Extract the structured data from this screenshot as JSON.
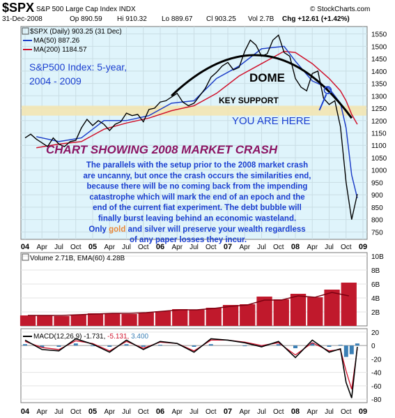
{
  "header": {
    "symbol": "$SPX",
    "name": "S&P 500 Large Cap Index INDX",
    "source": "© StockCharts.com",
    "date": "31-Dec-2008",
    "open": "Op 890.59",
    "high": "Hi 910.32",
    "low": "Lo 889.67",
    "close": "Cl 903.25",
    "volume": "Vol 2.7B",
    "change": "Chg +12.61 (+1.42%)",
    "change_arrow": "▲"
  },
  "price_panel": {
    "legend_price": "$SPX (Daily) 903.25 (31 Dec)",
    "legend_ma50": "MA(50) 887.26",
    "legend_ma200": "MA(200) 1184.57",
    "colors": {
      "price": "#000000",
      "ma50": "#1e3fc8",
      "ma200": "#d0112b",
      "background": "#dff4fb",
      "support_band": "#f3e6b3",
      "dome": "#000000"
    }
  },
  "annotations": {
    "title_line1": "S&P500 Index: 5-year,",
    "title_line2": "2004 - 2009",
    "dome": "DOME",
    "key_support": "KEY SUPPORT",
    "you_are_here": "YOU ARE HERE",
    "chart_heading": "CHART SHOWING 2008 MARKET CRASH",
    "paragraph": [
      "The parallels with the setup prior to the 2008 market crash",
      "are uncanny, but once the crash occurs the similarities end,",
      "because there will be no coming back from the impending",
      "catastrophe which will mark the end of an epoch and the",
      "end of the current fiat experiment. The debt bubble will",
      "finally burst leaving behind an economic wasteland."
    ],
    "last_line_pre": "Only ",
    "last_line_gold": "gold",
    "last_line_mid": " and silver will preserve your wealth regardless",
    "last_line_end": "of any paper losses they incur."
  },
  "volume_panel": {
    "legend": "Volume 2.71B, EMA(60) 4.28B",
    "colors": {
      "bars": "#c0192c",
      "ema": "#d0112b"
    }
  },
  "macd_panel": {
    "legend_label": "MACD(12,26,9)",
    "legend_macd": "-1.731,",
    "legend_signal": "-5.131,",
    "legend_hist": "3.400",
    "colors": {
      "macd": "#000000",
      "signal": "#d0112b",
      "hist": "#3a7fb5"
    }
  },
  "chart_data": [
    {
      "type": "line",
      "title": "$SPX (Daily) 903.25 (31 Dec)",
      "x_ticks": [
        "04",
        "Apr",
        "Jul",
        "Oct",
        "05",
        "Apr",
        "Jul",
        "Oct",
        "06",
        "Apr",
        "Jul",
        "Oct",
        "07",
        "Apr",
        "Jul",
        "Oct",
        "08",
        "Apr",
        "Jul",
        "Oct",
        "09"
      ],
      "y_ticks": [
        750,
        800,
        850,
        900,
        950,
        1000,
        1050,
        1100,
        1150,
        1200,
        1250,
        1300,
        1350,
        1400,
        1450,
        1500,
        1550
      ],
      "ylim": [
        720,
        1580
      ],
      "support_band": [
        1220,
        1260
      ],
      "series": [
        {
          "name": "$SPX",
          "x": [
            "2004-01",
            "2004-02",
            "2004-03",
            "2004-04",
            "2004-05",
            "2004-06",
            "2004-07",
            "2004-08",
            "2004-09",
            "2004-10",
            "2004-11",
            "2004-12",
            "2005-01",
            "2005-02",
            "2005-03",
            "2005-04",
            "2005-05",
            "2005-06",
            "2005-07",
            "2005-08",
            "2005-09",
            "2005-10",
            "2005-11",
            "2005-12",
            "2006-01",
            "2006-02",
            "2006-03",
            "2006-04",
            "2006-05",
            "2006-06",
            "2006-07",
            "2006-08",
            "2006-09",
            "2006-10",
            "2006-11",
            "2006-12",
            "2007-01",
            "2007-02",
            "2007-03",
            "2007-04",
            "2007-05",
            "2007-06",
            "2007-07",
            "2007-08",
            "2007-09",
            "2007-10",
            "2007-11",
            "2007-12",
            "2008-01",
            "2008-02",
            "2008-03",
            "2008-04",
            "2008-05",
            "2008-06",
            "2008-07",
            "2008-08",
            "2008-09",
            "2008-10",
            "2008-11",
            "2008-12"
          ],
          "values": [
            1130,
            1145,
            1125,
            1110,
            1095,
            1130,
            1105,
            1095,
            1115,
            1120,
            1170,
            1205,
            1180,
            1200,
            1185,
            1160,
            1185,
            1195,
            1230,
            1220,
            1225,
            1195,
            1245,
            1250,
            1275,
            1280,
            1295,
            1310,
            1275,
            1260,
            1270,
            1300,
            1330,
            1375,
            1395,
            1420,
            1435,
            1405,
            1415,
            1480,
            1525,
            1505,
            1460,
            1470,
            1525,
            1545,
            1475,
            1460,
            1370,
            1335,
            1320,
            1390,
            1400,
            1290,
            1265,
            1280,
            1175,
            950,
            800,
            903
          ]
        },
        {
          "name": "MA(50)",
          "x": [
            "2004-03",
            "2004-07",
            "2004-11",
            "2005-03",
            "2005-07",
            "2005-11",
            "2006-03",
            "2006-07",
            "2006-11",
            "2007-03",
            "2007-07",
            "2007-11",
            "2008-01",
            "2008-04",
            "2008-07",
            "2008-09",
            "2008-10",
            "2008-11",
            "2008-12"
          ],
          "values": [
            1135,
            1115,
            1130,
            1200,
            1200,
            1220,
            1270,
            1280,
            1370,
            1420,
            1490,
            1500,
            1440,
            1360,
            1330,
            1270,
            1170,
            980,
            887
          ]
        },
        {
          "name": "MA(200)",
          "x": [
            "2004-03",
            "2004-07",
            "2004-11",
            "2005-03",
            "2005-07",
            "2005-11",
            "2006-03",
            "2006-07",
            "2006-11",
            "2007-03",
            "2007-07",
            "2007-11",
            "2008-01",
            "2008-04",
            "2008-07",
            "2008-09",
            "2008-10",
            "2008-11",
            "2008-12"
          ],
          "values": [
            1090,
            1105,
            1115,
            1165,
            1190,
            1210,
            1240,
            1260,
            1310,
            1380,
            1430,
            1480,
            1475,
            1430,
            1370,
            1320,
            1280,
            1225,
            1185
          ]
        }
      ]
    },
    {
      "type": "bar",
      "title": "Volume 2.71B, EMA(60) 4.28B",
      "y_ticks": [
        "2B",
        "4B",
        "6B",
        "8B",
        "10B"
      ],
      "ylim": [
        0,
        10.5
      ],
      "unit": "billions",
      "series": [
        {
          "name": "Volume",
          "x": [
            "2004-Q1",
            "2004-Q2",
            "2004-Q3",
            "2004-Q4",
            "2005-Q1",
            "2005-Q2",
            "2005-Q3",
            "2005-Q4",
            "2006-Q1",
            "2006-Q2",
            "2006-Q3",
            "2006-Q4",
            "2007-Q1",
            "2007-Q2",
            "2007-Q3",
            "2007-Q4",
            "2008-Q1",
            "2008-Q2",
            "2008-Q3",
            "2008-Q4"
          ],
          "values": [
            1.5,
            1.5,
            1.4,
            1.6,
            1.8,
            1.8,
            1.7,
            1.9,
            2.1,
            2.4,
            2.3,
            2.6,
            3.0,
            3.1,
            4.2,
            3.8,
            4.6,
            4.1,
            5.2,
            6.2
          ]
        },
        {
          "name": "EMA(60)",
          "x": [
            "2004-Q1",
            "2004-Q2",
            "2004-Q3",
            "2004-Q4",
            "2005-Q1",
            "2005-Q2",
            "2005-Q3",
            "2005-Q4",
            "2006-Q1",
            "2006-Q2",
            "2006-Q3",
            "2006-Q4",
            "2007-Q1",
            "2007-Q2",
            "2007-Q3",
            "2007-Q4",
            "2008-Q1",
            "2008-Q2",
            "2008-Q3",
            "2008-Q4"
          ],
          "values": [
            1.5,
            1.5,
            1.5,
            1.6,
            1.7,
            1.8,
            1.8,
            1.9,
            2.1,
            2.3,
            2.3,
            2.5,
            2.8,
            3.0,
            3.7,
            3.7,
            4.3,
            4.1,
            4.8,
            4.3
          ]
        }
      ]
    },
    {
      "type": "line",
      "title": "MACD(12,26,9) -1.731, -5.131, 3.400",
      "y_ticks": [
        20,
        0,
        -20,
        -40,
        -60,
        -80
      ],
      "ylim": [
        -85,
        25
      ],
      "series": [
        {
          "name": "MACD",
          "x": [
            "2004-01",
            "2004-04",
            "2004-07",
            "2004-10",
            "2005-01",
            "2005-04",
            "2005-07",
            "2005-10",
            "2006-01",
            "2006-04",
            "2006-07",
            "2006-10",
            "2007-01",
            "2007-04",
            "2007-07",
            "2007-10",
            "2008-01",
            "2008-04",
            "2008-07",
            "2008-09",
            "2008-10",
            "2008-11",
            "2008-12"
          ],
          "values": [
            8,
            -6,
            -8,
            10,
            2,
            -10,
            8,
            -6,
            6,
            3,
            -10,
            10,
            8,
            4,
            -2,
            6,
            -18,
            8,
            -10,
            -5,
            -55,
            -78,
            -2
          ]
        },
        {
          "name": "Signal",
          "x": [
            "2004-01",
            "2004-04",
            "2004-07",
            "2004-10",
            "2005-01",
            "2005-04",
            "2005-07",
            "2005-10",
            "2006-01",
            "2006-04",
            "2006-07",
            "2006-10",
            "2007-01",
            "2007-04",
            "2007-07",
            "2007-10",
            "2008-01",
            "2008-04",
            "2008-07",
            "2008-09",
            "2008-10",
            "2008-11",
            "2008-12"
          ],
          "values": [
            6,
            -3,
            -6,
            7,
            3,
            -8,
            6,
            -4,
            5,
            3,
            -8,
            8,
            8,
            5,
            0,
            4,
            -14,
            4,
            -8,
            -6,
            -38,
            -65,
            -5
          ]
        }
      ]
    }
  ]
}
